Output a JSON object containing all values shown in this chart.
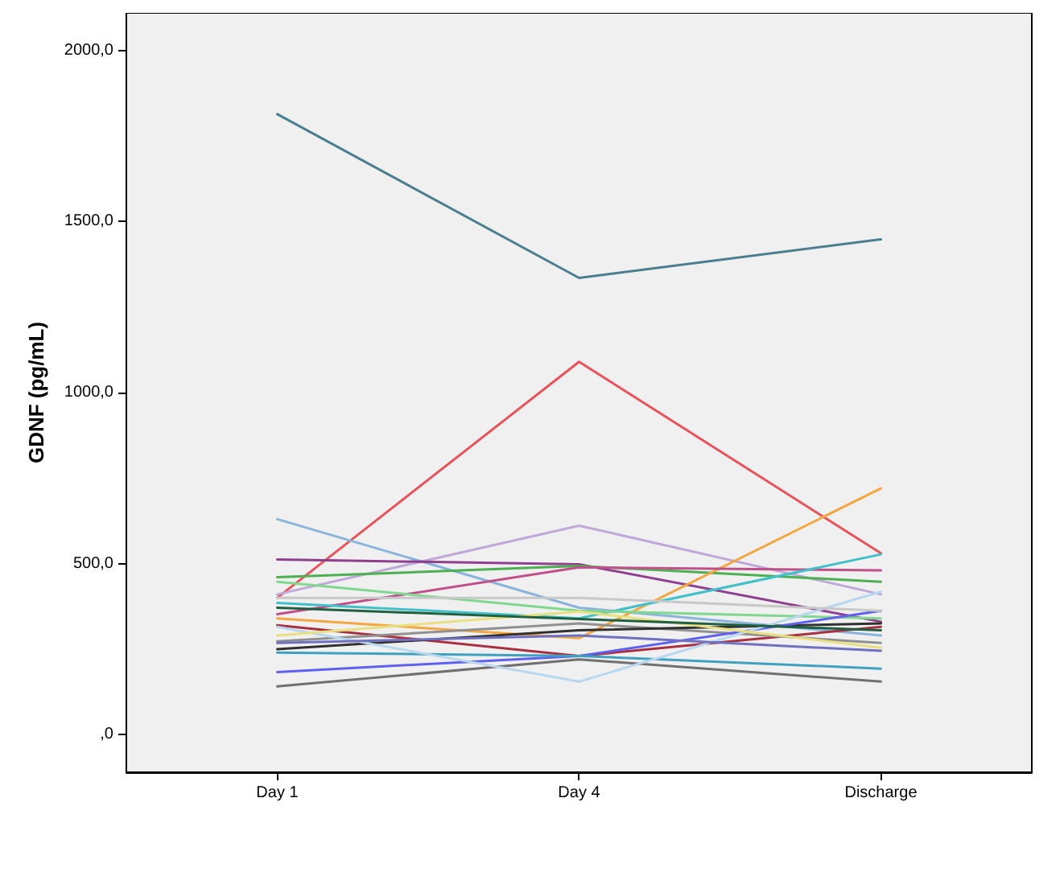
{
  "chart_data": {
    "type": "line",
    "ylabel": "GDNF (pg/mL)",
    "categories": [
      "Day 1",
      "Day 4",
      "Discharge"
    ],
    "ylim": [
      -110,
      2110
    ],
    "yticks": [
      {
        "value": 0,
        "label": ",0"
      },
      {
        "value": 500,
        "label": "500,0"
      },
      {
        "value": 1000,
        "label": "1000,0"
      },
      {
        "value": 1500,
        "label": "1500,0"
      },
      {
        "value": 2000,
        "label": "2000,0"
      }
    ],
    "grid": false,
    "marker": "none",
    "line_style": "solid",
    "series": [
      {
        "color": "#4a7f8f",
        "values": [
          1814,
          1335,
          1448
        ]
      },
      {
        "color": "#e8525a",
        "values": [
          400,
          1090,
          530
        ]
      },
      {
        "color": "#8ab4dc",
        "values": [
          630,
          371,
          290
        ]
      },
      {
        "color": "#c0a8d8",
        "values": [
          410,
          611,
          410
        ]
      },
      {
        "color": "#8e3f8e",
        "values": [
          512,
          498,
          330
        ]
      },
      {
        "color": "#4caf50",
        "values": [
          460,
          493,
          447
        ]
      },
      {
        "color": "#f4a640",
        "values": [
          340,
          282,
          720
        ]
      },
      {
        "color": "#c0508a",
        "values": [
          352,
          489,
          480
        ]
      },
      {
        "color": "#40c0c8",
        "values": [
          385,
          340,
          527
        ]
      },
      {
        "color": "#80d890",
        "values": [
          447,
          362,
          340
        ]
      },
      {
        "color": "#a83040",
        "values": [
          320,
          230,
          315
        ]
      },
      {
        "color": "#909090",
        "values": [
          273,
          325,
          268
        ]
      },
      {
        "color": "#303030",
        "values": [
          250,
          305,
          325
        ]
      },
      {
        "color": "#6060f0",
        "values": [
          183,
          230,
          362
        ]
      },
      {
        "color": "#707070",
        "values": [
          141,
          220,
          155
        ]
      },
      {
        "color": "#40a0c0",
        "values": [
          240,
          230,
          193
        ]
      },
      {
        "color": "#b8d8f0",
        "values": [
          315,
          155,
          418
        ]
      },
      {
        "color": "#e8e080",
        "values": [
          290,
          360,
          254
        ]
      },
      {
        "color": "#c8c8c8",
        "values": [
          400,
          400,
          362
        ]
      },
      {
        "color": "#7070c0",
        "values": [
          268,
          290,
          245
        ]
      },
      {
        "color": "#206040",
        "values": [
          371,
          338,
          305
        ]
      }
    ]
  }
}
